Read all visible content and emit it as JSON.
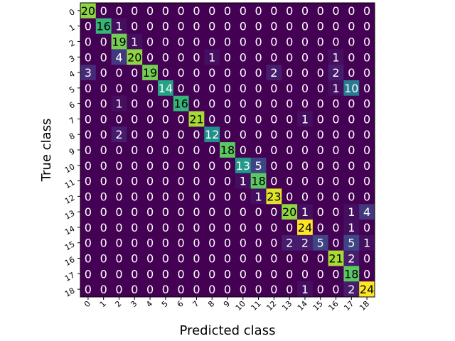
{
  "chart_data": {
    "type": "heatmap",
    "xlabel": "Predicted class",
    "ylabel": "True class",
    "x_categories": [
      "0",
      "1",
      "2",
      "3",
      "4",
      "5",
      "6",
      "7",
      "8",
      "9",
      "10",
      "11",
      "12",
      "13",
      "14",
      "15",
      "16",
      "17",
      "18"
    ],
    "y_categories": [
      "0",
      "1",
      "2",
      "3",
      "4",
      "5",
      "6",
      "7",
      "8",
      "9",
      "10",
      "11",
      "12",
      "13",
      "14",
      "15",
      "16",
      "17",
      "18"
    ],
    "colormap": "viridis",
    "vmin": 0,
    "vmax": 24,
    "grid": false,
    "values": [
      [
        20,
        0,
        0,
        0,
        0,
        0,
        0,
        0,
        0,
        0,
        0,
        0,
        0,
        0,
        0,
        0,
        0,
        0,
        0
      ],
      [
        0,
        16,
        1,
        0,
        0,
        0,
        0,
        0,
        0,
        0,
        0,
        0,
        0,
        0,
        0,
        0,
        0,
        0,
        0
      ],
      [
        0,
        0,
        19,
        1,
        0,
        0,
        0,
        0,
        0,
        0,
        0,
        0,
        0,
        0,
        0,
        0,
        0,
        0,
        0
      ],
      [
        0,
        0,
        4,
        20,
        0,
        0,
        0,
        0,
        1,
        0,
        0,
        0,
        0,
        0,
        0,
        0,
        1,
        0,
        0
      ],
      [
        3,
        0,
        0,
        0,
        19,
        0,
        0,
        0,
        0,
        0,
        0,
        0,
        2,
        0,
        0,
        0,
        2,
        0,
        0
      ],
      [
        0,
        0,
        0,
        0,
        0,
        14,
        0,
        0,
        0,
        0,
        0,
        0,
        0,
        0,
        0,
        0,
        1,
        10,
        0
      ],
      [
        0,
        0,
        1,
        0,
        0,
        0,
        16,
        0,
        0,
        0,
        0,
        0,
        0,
        0,
        0,
        0,
        0,
        0,
        0
      ],
      [
        0,
        0,
        0,
        0,
        0,
        0,
        0,
        21,
        0,
        0,
        0,
        0,
        0,
        0,
        1,
        0,
        0,
        0,
        0
      ],
      [
        0,
        0,
        2,
        0,
        0,
        0,
        0,
        0,
        12,
        0,
        0,
        0,
        0,
        0,
        0,
        0,
        0,
        0,
        0
      ],
      [
        0,
        0,
        0,
        0,
        0,
        0,
        0,
        0,
        0,
        18,
        0,
        0,
        0,
        0,
        0,
        0,
        0,
        0,
        0
      ],
      [
        0,
        0,
        0,
        0,
        0,
        0,
        0,
        0,
        0,
        0,
        13,
        5,
        0,
        0,
        0,
        0,
        0,
        0,
        0
      ],
      [
        0,
        0,
        0,
        0,
        0,
        0,
        0,
        0,
        0,
        0,
        1,
        18,
        0,
        0,
        0,
        0,
        0,
        0,
        0
      ],
      [
        0,
        0,
        0,
        0,
        0,
        0,
        0,
        0,
        0,
        0,
        0,
        1,
        23,
        0,
        0,
        0,
        0,
        0,
        0
      ],
      [
        0,
        0,
        0,
        0,
        0,
        0,
        0,
        0,
        0,
        0,
        0,
        0,
        0,
        20,
        1,
        0,
        0,
        1,
        4
      ],
      [
        0,
        0,
        0,
        0,
        0,
        0,
        0,
        0,
        0,
        0,
        0,
        0,
        0,
        0,
        24,
        0,
        0,
        1,
        0
      ],
      [
        0,
        0,
        0,
        0,
        0,
        0,
        0,
        0,
        0,
        0,
        0,
        0,
        0,
        2,
        2,
        5,
        0,
        5,
        1
      ],
      [
        0,
        0,
        0,
        0,
        0,
        0,
        0,
        0,
        0,
        0,
        0,
        0,
        0,
        0,
        0,
        0,
        21,
        2,
        0
      ],
      [
        0,
        0,
        0,
        0,
        0,
        0,
        0,
        0,
        0,
        0,
        0,
        0,
        0,
        0,
        0,
        0,
        0,
        18,
        0
      ],
      [
        0,
        0,
        0,
        0,
        0,
        0,
        0,
        0,
        0,
        0,
        0,
        0,
        0,
        0,
        1,
        0,
        0,
        2,
        24
      ]
    ]
  }
}
